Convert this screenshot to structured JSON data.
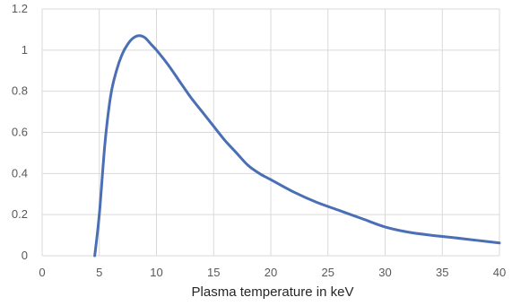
{
  "chart_data": {
    "type": "line",
    "title": "",
    "xlabel": "Plasma temperature in keV",
    "ylabel": "",
    "xlim": [
      0,
      40
    ],
    "ylim": [
      0,
      1.2
    ],
    "xticks": [
      "0",
      "5",
      "10",
      "15",
      "20",
      "25",
      "30",
      "35",
      "40"
    ],
    "yticks": [
      "0",
      "0.2",
      "0.4",
      "0.6",
      "0.8",
      "1",
      "1.2"
    ],
    "grid": true,
    "legend": "none",
    "series": [
      {
        "color": "#4a6fb5",
        "x": [
          4.6,
          5.0,
          5.5,
          6.0,
          6.5,
          7.0,
          7.5,
          8.0,
          8.5,
          9.0,
          9.5,
          10.0,
          11.0,
          12.0,
          13.0,
          14.0,
          15.0,
          16.0,
          17.0,
          18.0,
          19.0,
          20.0,
          22.0,
          24.0,
          26.0,
          28.0,
          30.0,
          32.0,
          34.0,
          36.0,
          38.0,
          40.0
        ],
        "values": [
          0.0,
          0.2,
          0.55,
          0.78,
          0.9,
          0.98,
          1.03,
          1.06,
          1.07,
          1.06,
          1.03,
          1.0,
          0.93,
          0.85,
          0.77,
          0.7,
          0.63,
          0.56,
          0.5,
          0.44,
          0.4,
          0.37,
          0.31,
          0.26,
          0.22,
          0.18,
          0.14,
          0.115,
          0.1,
          0.088,
          0.075,
          0.062
        ]
      }
    ]
  }
}
